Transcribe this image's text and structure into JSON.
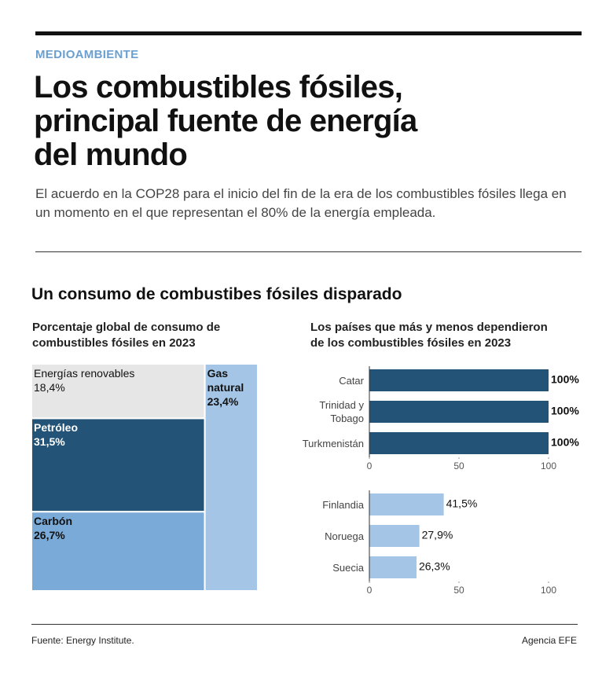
{
  "header": {
    "kicker": "MEDIOAMBIENTE",
    "title": "Los combustibles fósiles, principal fuente de energía del mundo",
    "subtitle": "El acuerdo en la COP28 para el inicio del fin de la era de los combustibles fósiles llega en un momento en el que representan el 80% de la energía empleada."
  },
  "section_title": "Un consumo de combustibes fósiles disparado",
  "chart_data": [
    {
      "type": "treemap",
      "title": "Porcentaje global de consumo de combustibles fósiles en 2023",
      "categories": [
        "Energías renovables",
        "Petróleo",
        "Carbón",
        "Gas natural"
      ],
      "values": [
        18.4,
        31.5,
        26.7,
        23.4
      ],
      "value_labels": [
        "18,4%",
        "31,5%",
        "26,7%",
        "23,4%"
      ],
      "colors": [
        "#e6e6e6",
        "#235478",
        "#7aaad8",
        "#a4c5e6"
      ]
    },
    {
      "type": "hbar",
      "title": "Los países que más y menos dependieron de los combustibles fósiles en 2023",
      "categories": [
        "Catar",
        "Trinidad y Tobago",
        "Turkmenistán"
      ],
      "values": [
        100,
        100,
        100
      ],
      "value_labels": [
        "100%",
        "100%",
        "100%"
      ],
      "color": "#235478",
      "xlim": [
        0,
        100
      ],
      "xticks": [
        0,
        50,
        100
      ]
    },
    {
      "type": "hbar",
      "categories": [
        "Finlandia",
        "Noruega",
        "Suecia"
      ],
      "values": [
        41.5,
        27.9,
        26.3
      ],
      "value_labels": [
        "41,5%",
        "27,9%",
        "26,3%"
      ],
      "color": "#a4c5e6",
      "xlim": [
        0,
        100
      ],
      "xticks": [
        0,
        50,
        100
      ]
    }
  ],
  "footer": {
    "source": "Fuente: Energy Institute.",
    "credit": "Agencia EFE"
  }
}
